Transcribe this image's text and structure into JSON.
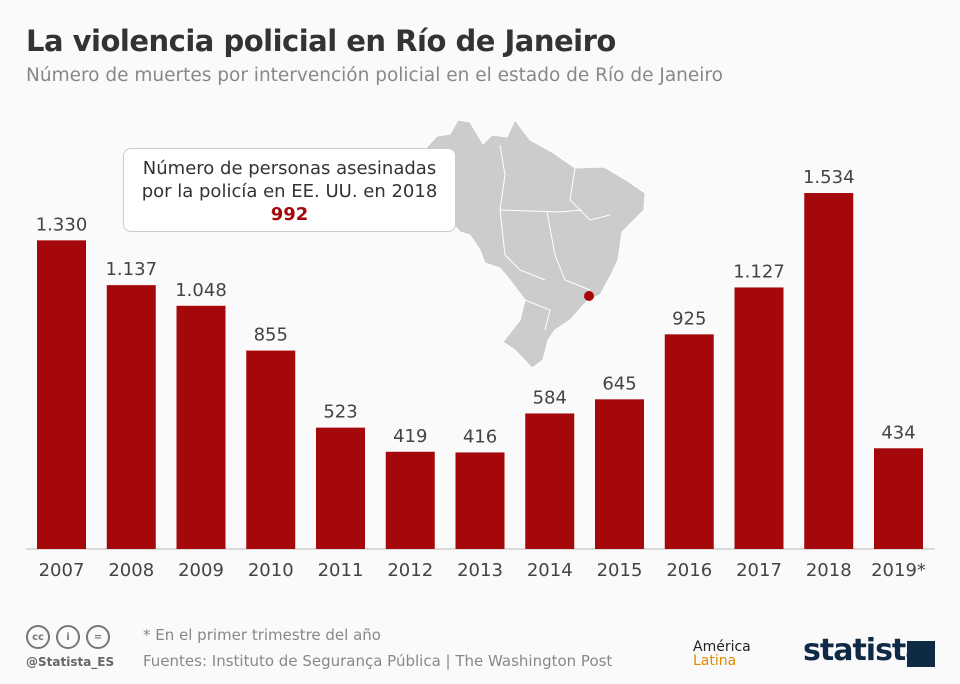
{
  "header": {
    "title": "La violencia policial en Río de Janeiro",
    "subtitle": "Número de muertes por intervención policial en el estado de Río de Janeiro"
  },
  "callout": {
    "line1": "Número de personas asesinadas",
    "line2": "por la policía en EE. UU. en 2018",
    "value": "992"
  },
  "colors": {
    "bar": "#a5080b",
    "map": "#cccccc",
    "marker": "#a5080b"
  },
  "chart_data": {
    "type": "bar",
    "categories": [
      "2007",
      "2008",
      "2009",
      "2010",
      "2011",
      "2012",
      "2013",
      "2014",
      "2015",
      "2016",
      "2017",
      "2018",
      "2019*"
    ],
    "values": [
      1330,
      1137,
      1048,
      855,
      523,
      419,
      416,
      584,
      645,
      925,
      1127,
      1534,
      434
    ],
    "labels": [
      "1.330",
      "1.137",
      "1.048",
      "855",
      "523",
      "419",
      "416",
      "584",
      "645",
      "925",
      "1.127",
      "1.534",
      "434"
    ],
    "title": "La violencia policial en Río de Janeiro",
    "ylim": [
      0,
      1534
    ],
    "grid": false
  },
  "footer": {
    "note": "* En el primer trimestre del año",
    "source": "Fuentes: Instituto de Segurança Pública | The Washington Post",
    "handle": "@Statista_ES",
    "brand1a": "América",
    "brand1b": "Latina",
    "brand2": "statista",
    "cc_icons": [
      "cc-icon",
      "by-icon",
      "nd-icon"
    ]
  }
}
